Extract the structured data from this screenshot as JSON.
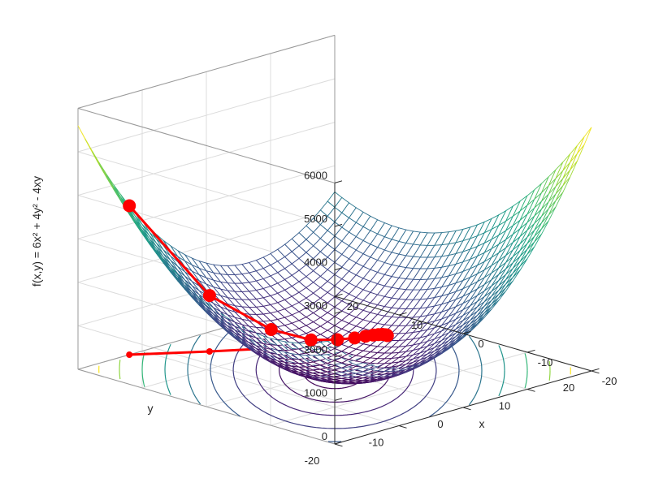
{
  "chart_data": {
    "type": "surface",
    "title": "",
    "function": "6x^2 + 4y^2 - 4xy",
    "xlabel": "x",
    "ylabel": "y",
    "zlabel": "f(x,y) = 6x² + 4y² - 4xy",
    "xlim": [
      -20,
      20
    ],
    "ylim": [
      -20,
      20
    ],
    "zlim": [
      0,
      6000
    ],
    "x_ticks": [
      "-20",
      "-10",
      "0",
      "10",
      "20"
    ],
    "y_ticks": [
      "-20",
      "-10",
      "0",
      "10",
      "20"
    ],
    "z_ticks": [
      "0",
      "1000",
      "2000",
      "3000",
      "4000",
      "5000",
      "6000"
    ],
    "grid": true,
    "colormap": "viridis",
    "contour_levels": [
      100,
      300,
      600,
      1000,
      1500,
      2100,
      2800,
      3600,
      4500,
      5400
    ],
    "path_color": "#ff0000",
    "descent_path": [
      {
        "x": -12.0,
        "y": 20.0
      },
      {
        "x": -4.8,
        "y": 14.7
      },
      {
        "x": 0.9,
        "y": 10.8
      },
      {
        "x": 3.9,
        "y": 7.6
      },
      {
        "x": 6.0,
        "y": 5.6
      },
      {
        "x": 7.2,
        "y": 4.1
      },
      {
        "x": 7.9,
        "y": 3.1
      },
      {
        "x": 8.3,
        "y": 2.3
      },
      {
        "x": 8.5,
        "y": 1.7
      },
      {
        "x": 8.6,
        "y": 1.2
      },
      {
        "x": 8.6,
        "y": 0.8
      },
      {
        "x": 8.6,
        "y": 0.5
      },
      {
        "x": 8.5,
        "y": 0.3
      }
    ]
  }
}
